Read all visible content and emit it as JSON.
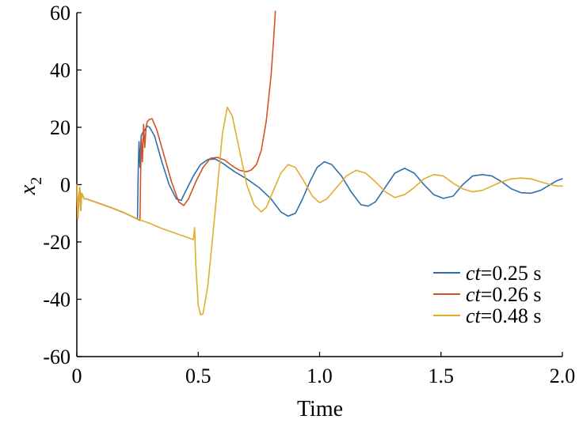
{
  "chart_data": {
    "type": "line",
    "xlabel": "Time",
    "ylabel": "x",
    "ylabel_subscript": "2",
    "xlim": [
      0,
      2.0
    ],
    "ylim": [
      -60,
      60
    ],
    "xticks": [
      "0",
      "0.5",
      "1.0",
      "1.5",
      "2.0"
    ],
    "yticks": [
      "-60",
      "-40",
      "-20",
      "0",
      "20",
      "40",
      "60"
    ],
    "grid": false,
    "legend_position": "lower-right",
    "series": [
      {
        "name": "ct=0.25 s",
        "legend_italic": "ct",
        "legend_rest": "=0.25 s",
        "color": "#2e6fad",
        "points": [
          [
            0,
            0
          ],
          [
            0.004,
            -12
          ],
          [
            0.008,
            -5
          ],
          [
            0.012,
            -1
          ],
          [
            0.016,
            -9
          ],
          [
            0.02,
            -3
          ],
          [
            0.03,
            -5
          ],
          [
            0.04,
            -5
          ],
          [
            0.1,
            -6.8
          ],
          [
            0.15,
            -8.3
          ],
          [
            0.2,
            -10
          ],
          [
            0.25,
            -12
          ],
          [
            0.253,
            5
          ],
          [
            0.256,
            15
          ],
          [
            0.26,
            6
          ],
          [
            0.265,
            17
          ],
          [
            0.27,
            18
          ],
          [
            0.28,
            19
          ],
          [
            0.29,
            20.5
          ],
          [
            0.3,
            20
          ],
          [
            0.32,
            17
          ],
          [
            0.35,
            8
          ],
          [
            0.38,
            0
          ],
          [
            0.41,
            -5
          ],
          [
            0.43,
            -5.5
          ],
          [
            0.45,
            -2
          ],
          [
            0.48,
            3
          ],
          [
            0.51,
            7
          ],
          [
            0.54,
            8.8
          ],
          [
            0.57,
            8.9
          ],
          [
            0.6,
            7.5
          ],
          [
            0.65,
            4.5
          ],
          [
            0.7,
            2
          ],
          [
            0.75,
            -1
          ],
          [
            0.8,
            -5
          ],
          [
            0.84,
            -9.5
          ],
          [
            0.87,
            -11
          ],
          [
            0.9,
            -10
          ],
          [
            0.93,
            -5
          ],
          [
            0.96,
            1
          ],
          [
            0.99,
            6
          ],
          [
            1.02,
            8
          ],
          [
            1.05,
            7
          ],
          [
            1.09,
            3
          ],
          [
            1.13,
            -2.5
          ],
          [
            1.17,
            -7
          ],
          [
            1.2,
            -7.5
          ],
          [
            1.23,
            -6
          ],
          [
            1.27,
            -1
          ],
          [
            1.31,
            4
          ],
          [
            1.35,
            5.7
          ],
          [
            1.39,
            4
          ],
          [
            1.43,
            0
          ],
          [
            1.47,
            -3.5
          ],
          [
            1.51,
            -4.8
          ],
          [
            1.55,
            -4
          ],
          [
            1.59,
            0
          ],
          [
            1.63,
            3
          ],
          [
            1.67,
            3.5
          ],
          [
            1.71,
            3
          ],
          [
            1.75,
            1
          ],
          [
            1.79,
            -1.5
          ],
          [
            1.83,
            -2.8
          ],
          [
            1.87,
            -3
          ],
          [
            1.91,
            -2
          ],
          [
            1.95,
            0
          ],
          [
            1.98,
            1.5
          ],
          [
            2.0,
            2
          ]
        ]
      },
      {
        "name": "ct=0.26 s",
        "legend_italic": "ct",
        "legend_rest": "=0.26 s",
        "color": "#d0532a",
        "points": [
          [
            0,
            0
          ],
          [
            0.004,
            -12
          ],
          [
            0.008,
            -5
          ],
          [
            0.012,
            -1
          ],
          [
            0.016,
            -9
          ],
          [
            0.02,
            -3
          ],
          [
            0.03,
            -5
          ],
          [
            0.04,
            -5
          ],
          [
            0.1,
            -6.8
          ],
          [
            0.15,
            -8.3
          ],
          [
            0.2,
            -10
          ],
          [
            0.26,
            -12.5
          ],
          [
            0.263,
            4
          ],
          [
            0.266,
            16
          ],
          [
            0.27,
            8
          ],
          [
            0.275,
            21
          ],
          [
            0.28,
            13
          ],
          [
            0.285,
            20
          ],
          [
            0.29,
            22
          ],
          [
            0.3,
            22.8
          ],
          [
            0.31,
            23
          ],
          [
            0.33,
            19
          ],
          [
            0.36,
            10
          ],
          [
            0.39,
            1
          ],
          [
            0.42,
            -6
          ],
          [
            0.44,
            -7.3
          ],
          [
            0.46,
            -5
          ],
          [
            0.49,
            1
          ],
          [
            0.52,
            6
          ],
          [
            0.55,
            9.2
          ],
          [
            0.58,
            9.5
          ],
          [
            0.61,
            8.5
          ],
          [
            0.64,
            6.5
          ],
          [
            0.67,
            5
          ],
          [
            0.7,
            4.5
          ],
          [
            0.72,
            5.2
          ],
          [
            0.74,
            7
          ],
          [
            0.76,
            12
          ],
          [
            0.78,
            22
          ],
          [
            0.8,
            38
          ],
          [
            0.81,
            50
          ],
          [
            0.818,
            60.5
          ]
        ]
      },
      {
        "name": "ct=0.48 s",
        "legend_italic": "ct",
        "legend_rest": "=0.48 s",
        "color": "#e0ad2c",
        "points": [
          [
            0,
            0
          ],
          [
            0.004,
            -12
          ],
          [
            0.008,
            -5
          ],
          [
            0.012,
            -1
          ],
          [
            0.016,
            -9
          ],
          [
            0.02,
            -3
          ],
          [
            0.03,
            -5
          ],
          [
            0.04,
            -5
          ],
          [
            0.1,
            -6.8
          ],
          [
            0.15,
            -8.3
          ],
          [
            0.2,
            -10
          ],
          [
            0.25,
            -12
          ],
          [
            0.3,
            -13.5
          ],
          [
            0.35,
            -15.3
          ],
          [
            0.4,
            -16.8
          ],
          [
            0.45,
            -18.3
          ],
          [
            0.48,
            -19.2
          ],
          [
            0.485,
            -15
          ],
          [
            0.49,
            -28
          ],
          [
            0.5,
            -42
          ],
          [
            0.51,
            -45.5
          ],
          [
            0.52,
            -45
          ],
          [
            0.54,
            -35
          ],
          [
            0.56,
            -18
          ],
          [
            0.58,
            0
          ],
          [
            0.6,
            18
          ],
          [
            0.62,
            27
          ],
          [
            0.64,
            24
          ],
          [
            0.66,
            16
          ],
          [
            0.68,
            8
          ],
          [
            0.7,
            0
          ],
          [
            0.73,
            -7
          ],
          [
            0.76,
            -9.5
          ],
          [
            0.78,
            -8
          ],
          [
            0.81,
            -2
          ],
          [
            0.84,
            4
          ],
          [
            0.87,
            7
          ],
          [
            0.9,
            6
          ],
          [
            0.93,
            2
          ],
          [
            0.97,
            -4
          ],
          [
            1.0,
            -6.3
          ],
          [
            1.03,
            -5
          ],
          [
            1.07,
            -1
          ],
          [
            1.11,
            3
          ],
          [
            1.15,
            5
          ],
          [
            1.19,
            4
          ],
          [
            1.23,
            1
          ],
          [
            1.27,
            -2.5
          ],
          [
            1.31,
            -4.5
          ],
          [
            1.35,
            -3.5
          ],
          [
            1.39,
            -1
          ],
          [
            1.43,
            2
          ],
          [
            1.47,
            3.5
          ],
          [
            1.51,
            3
          ],
          [
            1.55,
            0.5
          ],
          [
            1.59,
            -1.5
          ],
          [
            1.63,
            -2.5
          ],
          [
            1.67,
            -2
          ],
          [
            1.71,
            -0.5
          ],
          [
            1.75,
            1
          ],
          [
            1.79,
            2
          ],
          [
            1.83,
            2.3
          ],
          [
            1.87,
            2
          ],
          [
            1.91,
            1
          ],
          [
            1.95,
            0
          ],
          [
            1.98,
            -0.5
          ],
          [
            2.0,
            -0.5
          ]
        ]
      }
    ]
  }
}
